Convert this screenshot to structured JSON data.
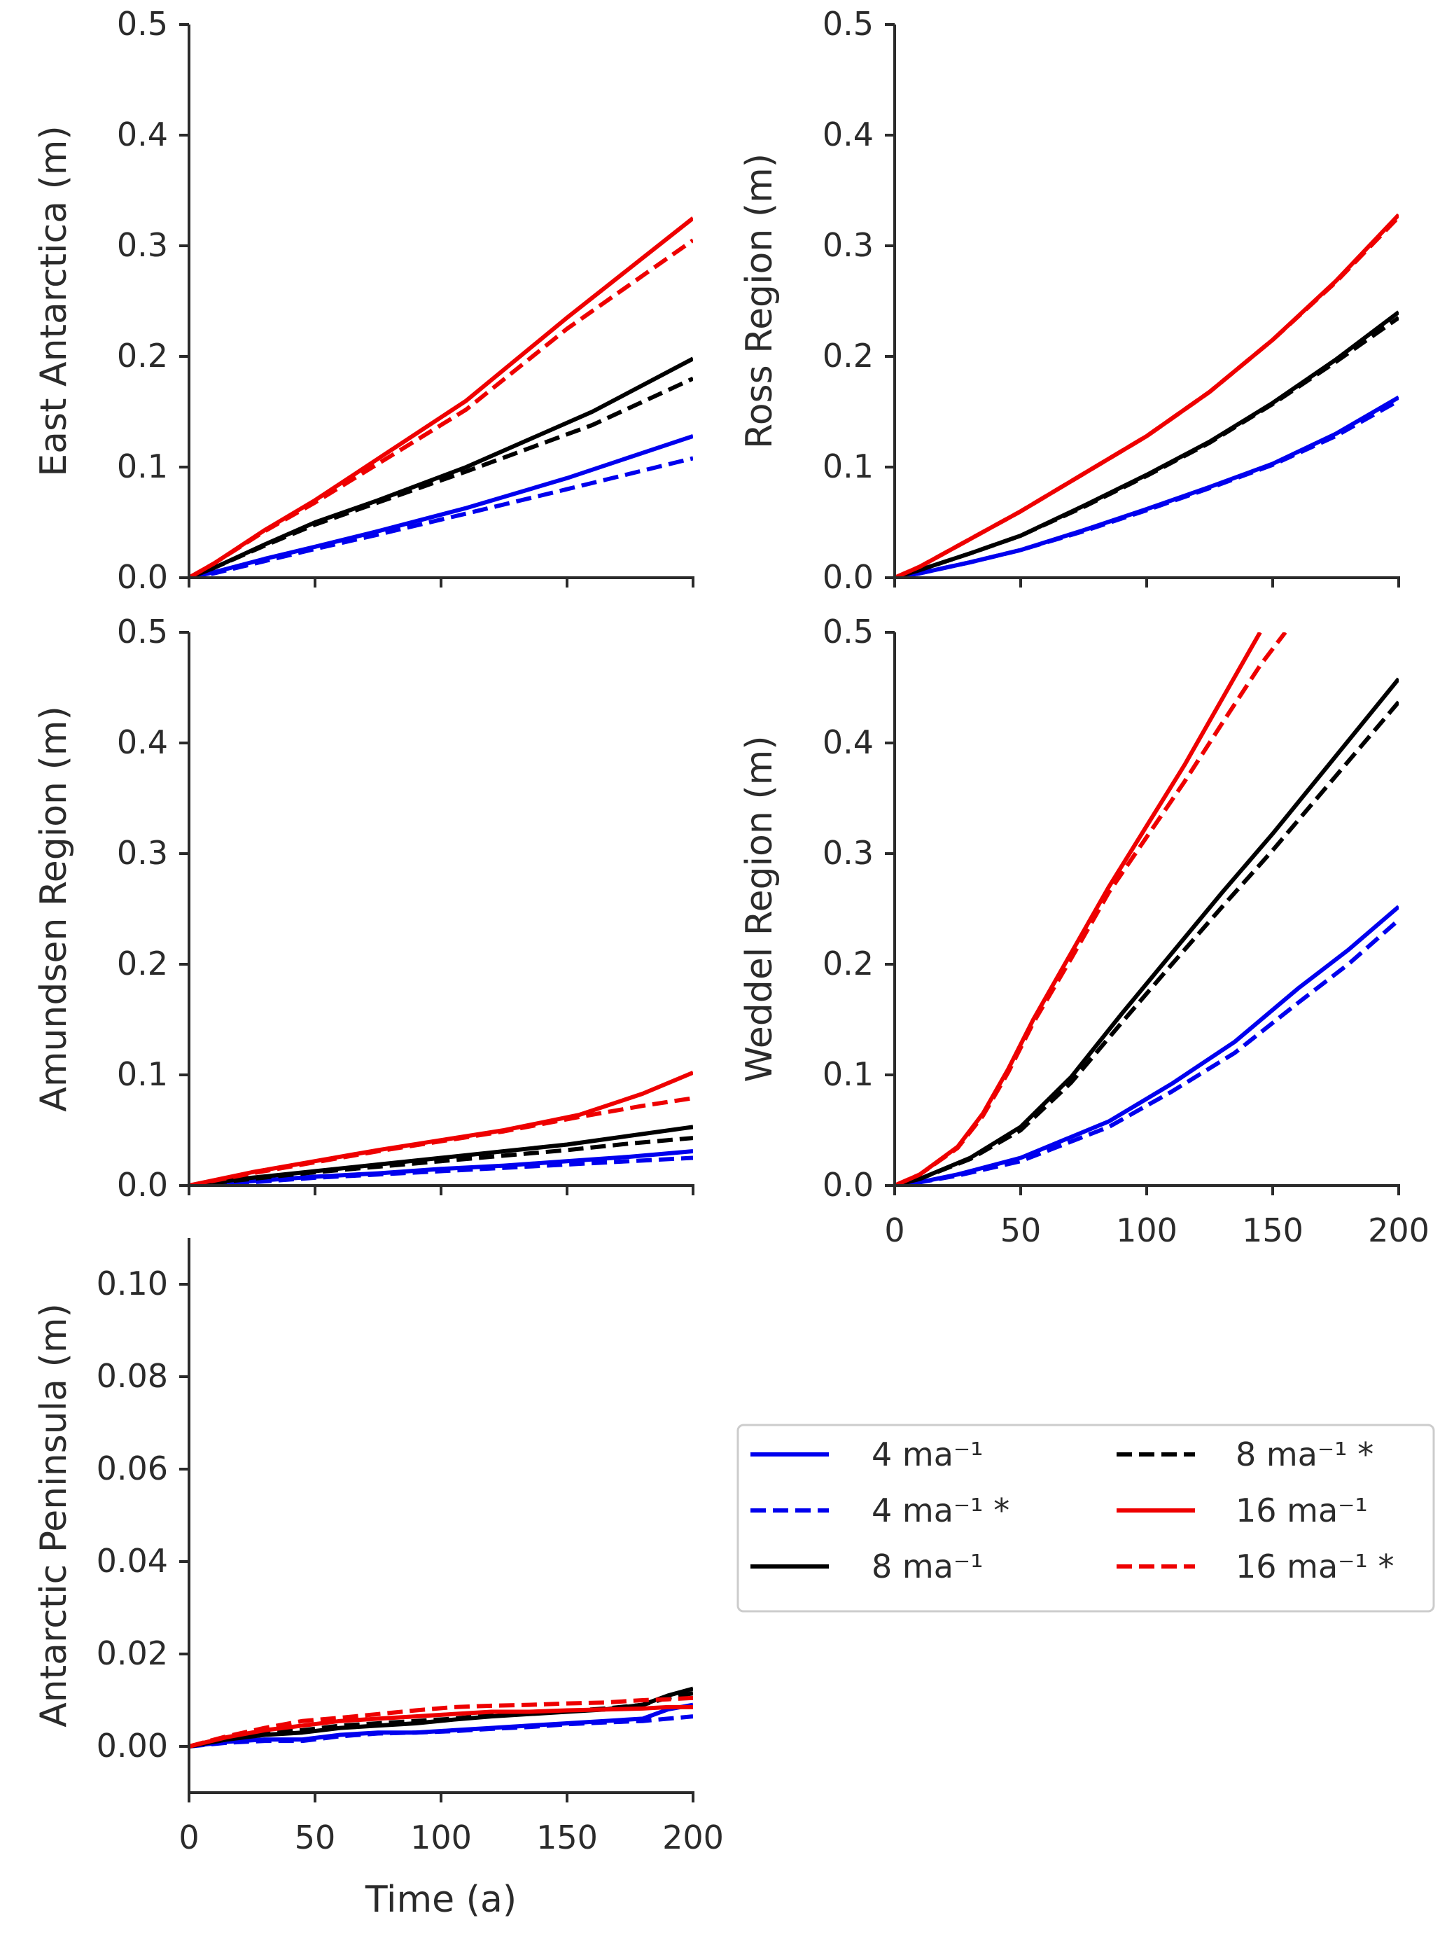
{
  "colors": {
    "blue": "#0000ee",
    "black": "#000000",
    "red": "#ee0000",
    "axis": "#2b2b2b"
  },
  "legend": {
    "entries": [
      {
        "key": "s4",
        "label": "4 ma⁻¹",
        "color": "#0000ee",
        "dashed": false
      },
      {
        "key": "s4s",
        "label": "4 ma⁻¹ *",
        "color": "#0000ee",
        "dashed": true
      },
      {
        "key": "s8",
        "label": "8 ma⁻¹",
        "color": "#000000",
        "dashed": false
      },
      {
        "key": "s8s",
        "label": "8 ma⁻¹ *",
        "color": "#000000",
        "dashed": true
      },
      {
        "key": "s16",
        "label": "16 ma⁻¹",
        "color": "#ee0000",
        "dashed": false
      },
      {
        "key": "s16s",
        "label": "16 ma⁻¹ *",
        "color": "#ee0000",
        "dashed": true
      }
    ]
  },
  "chart_data": [
    {
      "type": "line",
      "id": "east",
      "ylabel": "East Antarctica (m)",
      "xlabel": "",
      "xlim": [
        0,
        200
      ],
      "ylim": [
        0,
        0.5
      ],
      "xticks": [
        0,
        50,
        100,
        150,
        200
      ],
      "show_xticklabels": false,
      "yticks": [
        0,
        0.1,
        0.2,
        0.3,
        0.4,
        0.5
      ],
      "yticklabels": [
        "0.0",
        "0.1",
        "0.2",
        "0.3",
        "0.4",
        "0.5"
      ],
      "series": [
        {
          "name": "4 ma-1",
          "key": "s4",
          "x": [
            0,
            10,
            30,
            50,
            75,
            110,
            150,
            200
          ],
          "y": [
            0,
            0.005,
            0.017,
            0.028,
            0.042,
            0.063,
            0.09,
            0.128
          ]
        },
        {
          "name": "4 ma-1 *",
          "key": "s4s",
          "x": [
            0,
            10,
            30,
            50,
            75,
            110,
            150,
            200
          ],
          "y": [
            0,
            0.004,
            0.015,
            0.026,
            0.039,
            0.058,
            0.08,
            0.108
          ]
        },
        {
          "name": "8 ma-1",
          "key": "s8",
          "x": [
            0,
            10,
            30,
            50,
            75,
            110,
            160,
            200
          ],
          "y": [
            0,
            0.009,
            0.03,
            0.05,
            0.07,
            0.1,
            0.15,
            0.198
          ]
        },
        {
          "name": "8 ma-1 *",
          "key": "s8s",
          "x": [
            0,
            10,
            30,
            50,
            75,
            110,
            160,
            200
          ],
          "y": [
            0,
            0.009,
            0.029,
            0.048,
            0.068,
            0.096,
            0.138,
            0.18
          ]
        },
        {
          "name": "16 ma-1",
          "key": "s16",
          "x": [
            0,
            10,
            30,
            50,
            80,
            110,
            150,
            200
          ],
          "y": [
            0,
            0.013,
            0.043,
            0.07,
            0.115,
            0.16,
            0.235,
            0.325
          ]
        },
        {
          "name": "16 ma-1 *",
          "key": "s16s",
          "x": [
            0,
            10,
            30,
            50,
            80,
            110,
            150,
            200
          ],
          "y": [
            0,
            0.013,
            0.042,
            0.068,
            0.11,
            0.152,
            0.225,
            0.305
          ]
        }
      ]
    },
    {
      "type": "line",
      "id": "ross",
      "ylabel": "Ross Region (m)",
      "xlabel": "",
      "xlim": [
        0,
        200
      ],
      "ylim": [
        0,
        0.5
      ],
      "xticks": [
        0,
        50,
        100,
        150,
        200
      ],
      "show_xticklabels": false,
      "yticks": [
        0,
        0.1,
        0.2,
        0.3,
        0.4,
        0.5
      ],
      "yticklabels": [
        "0.0",
        "0.1",
        "0.2",
        "0.3",
        "0.4",
        "0.5"
      ],
      "series": [
        {
          "name": "4 ma-1",
          "key": "s4",
          "x": [
            0,
            10,
            30,
            50,
            75,
            100,
            125,
            150,
            175,
            200
          ],
          "y": [
            0,
            0.004,
            0.014,
            0.025,
            0.043,
            0.062,
            0.082,
            0.103,
            0.13,
            0.163
          ]
        },
        {
          "name": "4 ma-1 *",
          "key": "s4s",
          "x": [
            0,
            10,
            30,
            50,
            75,
            100,
            125,
            150,
            175,
            200
          ],
          "y": [
            0,
            0.004,
            0.014,
            0.025,
            0.042,
            0.061,
            0.081,
            0.102,
            0.128,
            0.16
          ]
        },
        {
          "name": "8 ma-1",
          "key": "s8",
          "x": [
            0,
            10,
            30,
            50,
            75,
            100,
            125,
            150,
            175,
            200
          ],
          "y": [
            0,
            0.007,
            0.022,
            0.038,
            0.065,
            0.093,
            0.123,
            0.158,
            0.197,
            0.24
          ]
        },
        {
          "name": "8 ma-1 *",
          "key": "s8s",
          "x": [
            0,
            10,
            30,
            50,
            75,
            100,
            125,
            150,
            175,
            200
          ],
          "y": [
            0,
            0.007,
            0.022,
            0.038,
            0.064,
            0.092,
            0.122,
            0.157,
            0.195,
            0.235
          ]
        },
        {
          "name": "16 ma-1",
          "key": "s16",
          "x": [
            0,
            10,
            30,
            50,
            75,
            100,
            125,
            150,
            175,
            200
          ],
          "y": [
            0,
            0.01,
            0.035,
            0.06,
            0.094,
            0.128,
            0.168,
            0.215,
            0.268,
            0.328
          ]
        },
        {
          "name": "16 ma-1 *",
          "key": "s16s",
          "x": [
            0,
            10,
            30,
            50,
            75,
            100,
            125,
            150,
            175,
            200
          ],
          "y": [
            0,
            0.01,
            0.035,
            0.06,
            0.094,
            0.128,
            0.168,
            0.215,
            0.267,
            0.326
          ]
        }
      ]
    },
    {
      "type": "line",
      "id": "amundsen",
      "ylabel": "Amundsen Region (m)",
      "xlabel": "",
      "xlim": [
        0,
        200
      ],
      "ylim": [
        0,
        0.5
      ],
      "xticks": [
        0,
        50,
        100,
        150,
        200
      ],
      "show_xticklabels": false,
      "yticks": [
        0,
        0.1,
        0.2,
        0.3,
        0.4,
        0.5
      ],
      "yticklabels": [
        "0.0",
        "0.1",
        "0.2",
        "0.3",
        "0.4",
        "0.5"
      ],
      "series": [
        {
          "name": "4 ma-1",
          "key": "s4",
          "x": [
            0,
            25,
            50,
            75,
            100,
            125,
            150,
            175,
            200
          ],
          "y": [
            0,
            0.004,
            0.008,
            0.011,
            0.015,
            0.018,
            0.022,
            0.026,
            0.031
          ]
        },
        {
          "name": "4 ma-1 *",
          "key": "s4s",
          "x": [
            0,
            25,
            50,
            75,
            100,
            125,
            150,
            175,
            200
          ],
          "y": [
            0,
            0.003,
            0.007,
            0.01,
            0.013,
            0.016,
            0.019,
            0.022,
            0.025
          ]
        },
        {
          "name": "8 ma-1",
          "key": "s8",
          "x": [
            0,
            25,
            50,
            75,
            100,
            125,
            150,
            175,
            200
          ],
          "y": [
            0,
            0.007,
            0.013,
            0.019,
            0.025,
            0.031,
            0.037,
            0.045,
            0.053
          ]
        },
        {
          "name": "8 ma-1 *",
          "key": "s8s",
          "x": [
            0,
            25,
            50,
            75,
            100,
            125,
            150,
            175,
            200
          ],
          "y": [
            0,
            0.006,
            0.012,
            0.017,
            0.022,
            0.027,
            0.032,
            0.038,
            0.043
          ]
        },
        {
          "name": "16 ma-1",
          "key": "s16",
          "x": [
            0,
            25,
            50,
            75,
            100,
            125,
            155,
            180,
            200
          ],
          "y": [
            0,
            0.012,
            0.022,
            0.032,
            0.041,
            0.05,
            0.064,
            0.083,
            0.102
          ]
        },
        {
          "name": "16 ma-1 *",
          "key": "s16s",
          "x": [
            0,
            25,
            50,
            75,
            100,
            125,
            155,
            180,
            200
          ],
          "y": [
            0,
            0.011,
            0.021,
            0.031,
            0.04,
            0.049,
            0.062,
            0.072,
            0.079
          ]
        }
      ]
    },
    {
      "type": "line",
      "id": "weddel",
      "ylabel": "Weddel Region (m)",
      "xlabel": "",
      "xlim": [
        0,
        200
      ],
      "ylim": [
        0,
        0.5
      ],
      "xticks": [
        0,
        50,
        100,
        150,
        200
      ],
      "xticklabels": [
        "0",
        "50",
        "100",
        "150",
        "200"
      ],
      "show_xticklabels": true,
      "yticks": [
        0,
        0.1,
        0.2,
        0.3,
        0.4,
        0.5
      ],
      "yticklabels": [
        "0.0",
        "0.1",
        "0.2",
        "0.3",
        "0.4",
        "0.5"
      ],
      "series": [
        {
          "name": "4 ma-1",
          "key": "s4",
          "x": [
            0,
            10,
            25,
            50,
            85,
            110,
            135,
            160,
            180,
            200
          ],
          "y": [
            0,
            0.003,
            0.01,
            0.025,
            0.058,
            0.092,
            0.13,
            0.178,
            0.213,
            0.252
          ]
        },
        {
          "name": "4 ma-1 *",
          "key": "s4s",
          "x": [
            0,
            10,
            25,
            50,
            85,
            110,
            135,
            160,
            180,
            200
          ],
          "y": [
            0,
            0.003,
            0.009,
            0.022,
            0.053,
            0.085,
            0.12,
            0.165,
            0.2,
            0.24
          ]
        },
        {
          "name": "8 ma-1",
          "key": "s8",
          "x": [
            0,
            10,
            30,
            50,
            70,
            90,
            110,
            130,
            150,
            175,
            200
          ],
          "y": [
            0,
            0.006,
            0.025,
            0.053,
            0.098,
            0.155,
            0.21,
            0.265,
            0.318,
            0.388,
            0.458
          ]
        },
        {
          "name": "8 ma-1 *",
          "key": "s8s",
          "x": [
            0,
            10,
            30,
            50,
            70,
            90,
            110,
            130,
            150,
            175,
            200
          ],
          "y": [
            0,
            0.006,
            0.024,
            0.05,
            0.093,
            0.147,
            0.2,
            0.252,
            0.303,
            0.37,
            0.437
          ]
        },
        {
          "name": "16 ma-1",
          "key": "s16",
          "x": [
            0,
            10,
            25,
            35,
            45,
            55,
            70,
            85,
            100,
            115,
            130,
            145
          ],
          "y": [
            0,
            0.01,
            0.035,
            0.065,
            0.105,
            0.15,
            0.21,
            0.27,
            0.325,
            0.38,
            0.44,
            0.5
          ]
        },
        {
          "name": "16 ma-1 *",
          "key": "s16s",
          "x": [
            0,
            10,
            25,
            35,
            45,
            55,
            70,
            85,
            100,
            115,
            130,
            145,
            155
          ],
          "y": [
            0,
            0.01,
            0.034,
            0.063,
            0.102,
            0.147,
            0.205,
            0.265,
            0.315,
            0.365,
            0.418,
            0.47,
            0.5
          ]
        }
      ]
    },
    {
      "type": "line",
      "id": "peninsula",
      "ylabel": "Antarctic Peninsula (m)",
      "xlabel": "Time (a)",
      "xlim": [
        0,
        200
      ],
      "ylim": [
        -0.01,
        0.11
      ],
      "xticks": [
        0,
        50,
        100,
        150,
        200
      ],
      "xticklabels": [
        "0",
        "50",
        "100",
        "150",
        "200"
      ],
      "show_xticklabels": true,
      "yticks": [
        0,
        0.02,
        0.04,
        0.06,
        0.08,
        0.1
      ],
      "yticklabels": [
        "0.00",
        "0.02",
        "0.04",
        "0.06",
        "0.08",
        "0.10"
      ],
      "series": [
        {
          "name": "4 ma-1",
          "key": "s4",
          "x": [
            0,
            15,
            30,
            45,
            60,
            75,
            90,
            105,
            120,
            135,
            150,
            165,
            180,
            190,
            200
          ],
          "y": [
            0,
            0.001,
            0.0015,
            0.0015,
            0.0025,
            0.003,
            0.003,
            0.0035,
            0.004,
            0.0045,
            0.005,
            0.0055,
            0.006,
            0.008,
            0.009
          ]
        },
        {
          "name": "4 ma-1 *",
          "key": "s4s",
          "x": [
            0,
            15,
            30,
            45,
            60,
            75,
            90,
            105,
            120,
            135,
            150,
            165,
            180,
            190,
            200
          ],
          "y": [
            0,
            0.0008,
            0.0012,
            0.0012,
            0.0022,
            0.0028,
            0.003,
            0.0033,
            0.0038,
            0.0042,
            0.0048,
            0.0052,
            0.0055,
            0.006,
            0.0065
          ]
        },
        {
          "name": "8 ma-1",
          "key": "s8",
          "x": [
            0,
            15,
            30,
            45,
            60,
            75,
            90,
            105,
            120,
            135,
            150,
            165,
            180,
            190,
            200
          ],
          "y": [
            0,
            0.0015,
            0.0025,
            0.003,
            0.004,
            0.0045,
            0.005,
            0.0058,
            0.0065,
            0.007,
            0.0075,
            0.008,
            0.009,
            0.011,
            0.0125
          ]
        },
        {
          "name": "8 ma-1 *",
          "key": "s8s",
          "x": [
            0,
            15,
            30,
            45,
            60,
            75,
            90,
            105,
            120,
            135,
            150,
            165,
            180,
            190,
            200
          ],
          "y": [
            0,
            0.0015,
            0.003,
            0.0035,
            0.0045,
            0.005,
            0.0055,
            0.006,
            0.0068,
            0.0072,
            0.0076,
            0.0082,
            0.009,
            0.0105,
            0.0115
          ]
        },
        {
          "name": "16 ma-1",
          "key": "s16",
          "x": [
            0,
            15,
            30,
            45,
            60,
            75,
            90,
            105,
            120,
            135,
            150,
            165,
            180,
            190,
            200
          ],
          "y": [
            0,
            0.002,
            0.0035,
            0.0045,
            0.0055,
            0.006,
            0.0065,
            0.007,
            0.0075,
            0.0075,
            0.0078,
            0.008,
            0.0082,
            0.0085,
            0.0085
          ]
        },
        {
          "name": "16 ma-1 *",
          "key": "s16s",
          "x": [
            0,
            15,
            30,
            45,
            60,
            75,
            90,
            105,
            120,
            135,
            150,
            165,
            180,
            190,
            200
          ],
          "y": [
            0,
            0.0022,
            0.004,
            0.0055,
            0.0062,
            0.007,
            0.0078,
            0.0085,
            0.0088,
            0.009,
            0.0093,
            0.0095,
            0.01,
            0.0102,
            0.0105
          ]
        }
      ]
    }
  ]
}
